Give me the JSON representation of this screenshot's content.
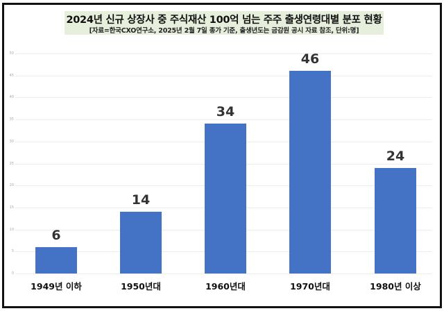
{
  "header": {
    "title": "2024년 신규 상장사 중 주식재산 100억 넘는 주주 출생연령대별 분포 현황",
    "subtitle": "[자료=한국CXO연구소, 2025년 2월 7일 종가 기준, 출생년도는 금감원 공시 자료 참조, 단위:명]"
  },
  "colors": {
    "bar": "#4472c4",
    "title_bg": "#e6efdc",
    "frame": "#111111"
  },
  "chart_data": {
    "type": "bar",
    "title": "2024년 신규 상장사 중 주식재산 100억 넘는 주주 출생연령대별 분포 현황",
    "subtitle": "[자료=한국CXO연구소, 2025년 2월 7일 종가 기준, 출생년도는 금감원 공시 자료 참조, 단위:명]",
    "categories": [
      "1949년 이하",
      "1950년대",
      "1960년대",
      "1970년대",
      "1980년 이상"
    ],
    "values": [
      6,
      14,
      34,
      46,
      24
    ],
    "value_labels": [
      "6",
      "14",
      "34",
      "46",
      "24"
    ],
    "xlabel": "",
    "ylabel": "",
    "ylim": [
      0,
      50
    ],
    "yticks": [
      "0",
      "5",
      "10",
      "15",
      "20",
      "25",
      "30",
      "35",
      "40",
      "45",
      "50"
    ],
    "grid": true,
    "legend": "none",
    "unit": "명"
  }
}
